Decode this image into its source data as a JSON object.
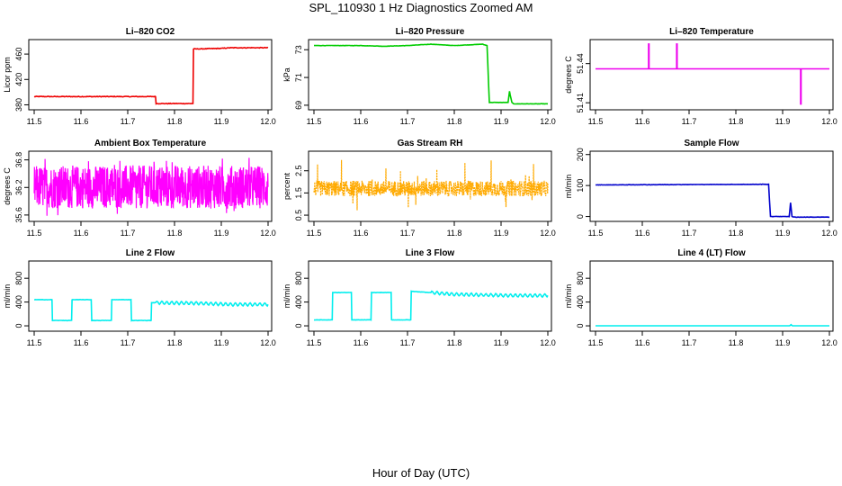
{
  "page": {
    "title": "SPL_110930  1 Hz Diagnostics Zoomed AM",
    "xlabel": "Hour of Day (UTC)"
  },
  "colors": {
    "red": "#ee0000",
    "green": "#00cc00",
    "magenta": "#ff00ff",
    "orange": "#ffaa00",
    "blue": "#0000cc",
    "cyan": "#00eeee"
  },
  "chart_data": [
    {
      "type": "line",
      "title": "Li–820 CO2",
      "ylabel": "Licor ppm",
      "color": "#ee0000",
      "xlim": [
        11.5,
        12.0
      ],
      "ylim": [
        375,
        480
      ],
      "xticks": [
        11.5,
        11.6,
        11.7,
        11.8,
        11.9,
        12.0
      ],
      "yticks": [
        380,
        420,
        460
      ],
      "noise": 1,
      "series": [
        {
          "x": [
            11.5,
            11.7595,
            11.7605,
            11.8395,
            11.8405,
            11.9,
            11.92,
            12.0
          ],
          "y": [
            393,
            393,
            382,
            382,
            468,
            469,
            470,
            470
          ]
        }
      ]
    },
    {
      "type": "line",
      "title": "Li–820 Pressure",
      "ylabel": "kPa",
      "color": "#00cc00",
      "xlim": [
        11.5,
        12.0
      ],
      "ylim": [
        68.8,
        73.6
      ],
      "xticks": [
        11.5,
        11.6,
        11.7,
        11.8,
        11.9,
        12.0
      ],
      "yticks": [
        69,
        71,
        73
      ],
      "noise": 0.02,
      "series": [
        {
          "x": [
            11.5,
            11.6,
            11.65,
            11.7,
            11.75,
            11.8,
            11.86,
            11.87,
            11.875,
            11.915,
            11.918,
            11.923,
            11.927,
            12.0
          ],
          "y": [
            73.3,
            73.3,
            73.25,
            73.3,
            73.4,
            73.3,
            73.4,
            73.3,
            69.2,
            69.2,
            70.0,
            69.2,
            69.1,
            69.1
          ]
        }
      ]
    },
    {
      "type": "line",
      "title": "Li–820 Temperature",
      "ylabel": "degrees C",
      "color": "#ee00ee",
      "xlim": [
        11.5,
        12.0
      ],
      "ylim": [
        51.406,
        51.457
      ],
      "xticks": [
        11.5,
        11.6,
        11.7,
        11.8,
        11.9,
        12.0
      ],
      "yticks": [
        51.41,
        51.44
      ],
      "noise": 0,
      "series": [
        {
          "x": [
            11.5,
            11.6135,
            11.6135,
            11.6145,
            11.6145,
            11.6735,
            11.6735,
            11.6745,
            11.6745,
            11.9385,
            11.9385,
            11.9395,
            11.9395,
            12.0
          ],
          "y": [
            51.436,
            51.436,
            51.455,
            51.455,
            51.436,
            51.436,
            51.455,
            51.455,
            51.436,
            51.436,
            51.409,
            51.409,
            51.436,
            51.436
          ]
        }
      ]
    },
    {
      "type": "line",
      "title": "Ambient Box Temperature",
      "ylabel": "degrees C",
      "color": "#ff00ff",
      "xlim": [
        11.5,
        12.0
      ],
      "ylim": [
        35.5,
        36.95
      ],
      "xticks": [
        11.5,
        11.6,
        11.7,
        11.8,
        11.9,
        12.0
      ],
      "yticks": [
        35.6,
        36.2,
        36.8
      ],
      "dense": true,
      "series": [
        {
          "band": [
            35.74,
            36.68
          ],
          "spike_range": [
            35.58,
            36.86
          ]
        }
      ]
    },
    {
      "type": "line",
      "title": "Gas Stream RH",
      "ylabel": "percent",
      "color": "#ffaa00",
      "xlim": [
        11.5,
        12.0
      ],
      "ylim": [
        0.3,
        3.3
      ],
      "xticks": [
        11.5,
        11.6,
        11.7,
        11.8,
        11.9,
        12.0
      ],
      "yticks": [
        0.5,
        1.5,
        2.5
      ],
      "dense": true,
      "dotted": true,
      "series": [
        {
          "band": [
            1.35,
            2.05
          ],
          "spike_range": [
            0.4,
            3.1
          ]
        }
      ]
    },
    {
      "type": "line",
      "title": "Sample Flow",
      "ylabel": "ml/min",
      "color": "#0000cc",
      "xlim": [
        11.5,
        12.0
      ],
      "ylim": [
        -10,
        205
      ],
      "xticks": [
        11.5,
        11.6,
        11.7,
        11.8,
        11.9,
        12.0
      ],
      "yticks": [
        0,
        100,
        200
      ],
      "noise": 1,
      "series": [
        {
          "x": [
            11.5,
            11.87,
            11.874,
            11.914,
            11.917,
            11.92,
            11.924,
            12.0
          ],
          "y": [
            102,
            104,
            0,
            0,
            45,
            0,
            -2,
            -2
          ]
        }
      ]
    },
    {
      "type": "line",
      "title": "Line 2 Flow",
      "ylabel": "ml/min",
      "color": "#00eeee",
      "xlim": [
        11.5,
        12.0
      ],
      "ylim": [
        -60,
        1060
      ],
      "xticks": [
        11.5,
        11.6,
        11.7,
        11.8,
        11.9,
        12.0
      ],
      "yticks": [
        0,
        400,
        800
      ],
      "noise": 6,
      "series": [
        {
          "x": [
            11.5,
            11.538,
            11.539,
            11.58,
            11.581,
            11.622,
            11.623,
            11.665,
            11.666,
            11.707,
            11.708,
            11.75,
            11.751,
            11.85,
            11.92,
            12.0
          ],
          "y": [
            440,
            440,
            90,
            90,
            440,
            440,
            90,
            90,
            440,
            440,
            90,
            90,
            390,
            380,
            360,
            360
          ]
        }
      ],
      "wave": {
        "start": 11.76,
        "amp": 25
      }
    },
    {
      "type": "line",
      "title": "Line 3 Flow",
      "ylabel": "ml/min",
      "color": "#00eeee",
      "xlim": [
        11.5,
        12.0
      ],
      "ylim": [
        -60,
        1060
      ],
      "xticks": [
        11.5,
        11.6,
        11.7,
        11.8,
        11.9,
        12.0
      ],
      "yticks": [
        0,
        400,
        800
      ],
      "noise": 6,
      "series": [
        {
          "x": [
            11.5,
            11.539,
            11.54,
            11.58,
            11.581,
            11.622,
            11.623,
            11.665,
            11.666,
            11.707,
            11.708,
            11.75,
            11.8,
            11.92,
            12.0
          ],
          "y": [
            100,
            100,
            560,
            560,
            100,
            100,
            560,
            560,
            100,
            100,
            580,
            560,
            530,
            510,
            510
          ]
        }
      ],
      "wave": {
        "start": 11.75,
        "amp": 25
      }
    },
    {
      "type": "line",
      "title": "Line 4 (LT) Flow",
      "ylabel": "ml/min",
      "color": "#00eeee",
      "xlim": [
        11.5,
        12.0
      ],
      "ylim": [
        -60,
        1060
      ],
      "xticks": [
        11.5,
        11.6,
        11.7,
        11.8,
        11.9,
        12.0
      ],
      "yticks": [
        0,
        400,
        800
      ],
      "noise": 0,
      "series": [
        {
          "x": [
            11.5,
            11.915,
            11.918,
            11.921,
            12.0
          ],
          "y": [
            0,
            0,
            20,
            0,
            0
          ]
        }
      ]
    }
  ]
}
